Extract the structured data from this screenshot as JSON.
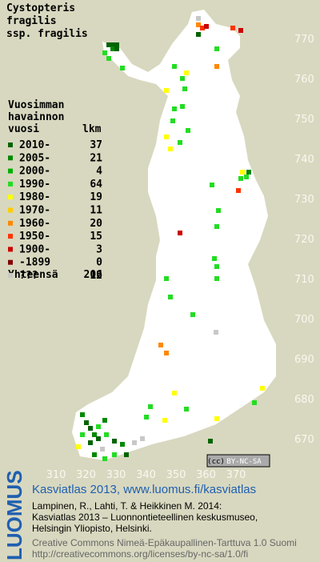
{
  "title": [
    "Cystopteris",
    "fragilis",
    "ssp. fragilis"
  ],
  "legend": {
    "heading": [
      "Vuosimman",
      "havainnon"
    ],
    "col_year": "vuosi",
    "col_count": "lkm",
    "entries": [
      {
        "label": "2010-",
        "count": 37,
        "color": "#006400"
      },
      {
        "label": "2005-",
        "count": 21,
        "color": "#008800"
      },
      {
        "label": "2000-",
        "count": 4,
        "color": "#00b000"
      },
      {
        "label": "1990-",
        "count": 64,
        "color": "#22dd22"
      },
      {
        "label": "1980-",
        "count": 19,
        "color": "#ffff00"
      },
      {
        "label": "1970-",
        "count": 11,
        "color": "#ffcc00"
      },
      {
        "label": "1960-",
        "count": 20,
        "color": "#ff8800"
      },
      {
        "label": "1950-",
        "count": 15,
        "color": "#ff3300"
      },
      {
        "label": "1900-",
        "count": 3,
        "color": "#cc0000"
      },
      {
        "label": "-1899",
        "count": 0,
        "color": "#800000"
      },
      {
        "label": "???",
        "count": 12,
        "color": "#c8c8c8"
      }
    ],
    "total_label": "Yhteensä",
    "total": 206
  },
  "map": {
    "x_labels": [
      310,
      320,
      330,
      340,
      350,
      360,
      370
    ],
    "y_labels": [
      770,
      760,
      750,
      740,
      730,
      720,
      710,
      700,
      690,
      680,
      670
    ]
  },
  "badge": {
    "cc": "(cc)",
    "text": "BY-NC-SA"
  },
  "footer": {
    "logo": "LUOMUS",
    "title": "Kasviatlas 2013, www.luomus.fi/kasviatlas",
    "citation": [
      "Lampinen, R., Lahti, T. & Heikkinen M. 2014:",
      "Kasviatlas 2013 – Luonnontieteellinen keskusmuseo,",
      "Helsingin Yliopisto, Helsinki."
    ],
    "license": [
      "Creative Commons Nimeä-Epäkaupallinen-Tarttuva 1.0 Suomi",
      "http://creativecommons.org/licenses/by-nc-sa/1.0/fi"
    ]
  }
}
